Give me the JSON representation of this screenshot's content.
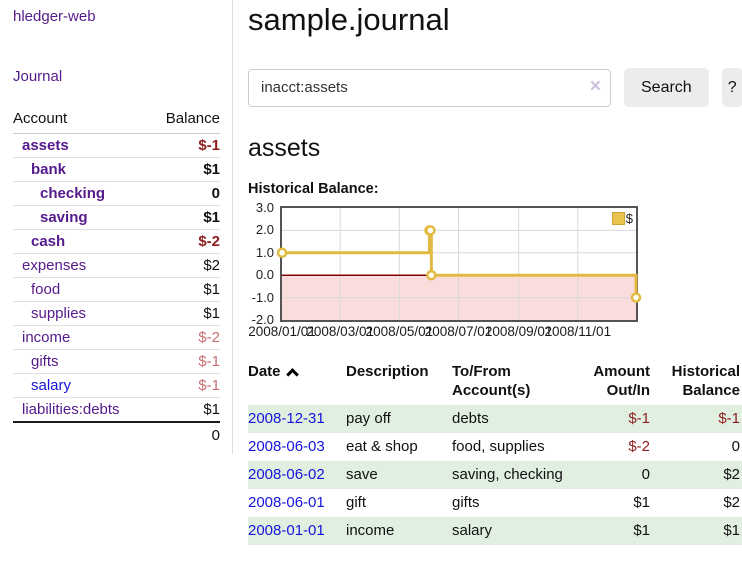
{
  "app": {
    "brand": "hledger-web",
    "nav_journal": "Journal"
  },
  "sidebar": {
    "headers": {
      "account": "Account",
      "balance": "Balance"
    },
    "accounts": [
      {
        "name": "assets",
        "balance": "$-1",
        "depth": 1,
        "bold": true,
        "neg": "strong"
      },
      {
        "name": "bank",
        "balance": "$1",
        "depth": 2,
        "bold": true,
        "neg": "none"
      },
      {
        "name": "checking",
        "balance": "0",
        "depth": 3,
        "bold": true,
        "neg": "none"
      },
      {
        "name": "saving",
        "balance": "$1",
        "depth": 3,
        "bold": true,
        "neg": "none"
      },
      {
        "name": "cash",
        "balance": "$-2",
        "depth": 2,
        "bold": true,
        "neg": "strong"
      },
      {
        "name": "expenses",
        "balance": "$2",
        "depth": 1,
        "bold": false,
        "neg": "none"
      },
      {
        "name": "food",
        "balance": "$1",
        "depth": 2,
        "bold": false,
        "neg": "none"
      },
      {
        "name": "supplies",
        "balance": "$1",
        "depth": 2,
        "bold": false,
        "neg": "none"
      },
      {
        "name": "income",
        "balance": "$-2",
        "depth": 1,
        "bold": false,
        "neg": "soft"
      },
      {
        "name": "gifts",
        "balance": "$-1",
        "depth": 2,
        "bold": false,
        "neg": "soft"
      },
      {
        "name": "salary",
        "balance": "$-1",
        "depth": 2,
        "bold": false,
        "neg": "soft",
        "blue": true
      },
      {
        "name": "liabilities:debts",
        "balance": "$1",
        "depth": 1,
        "bold": false,
        "neg": "none"
      }
    ],
    "total": "0"
  },
  "header": {
    "title": "sample.journal"
  },
  "search": {
    "value": "inacct:assets",
    "clear_icon": "×",
    "button_label": "Search",
    "help_label": "?"
  },
  "account_page": {
    "title": "assets",
    "chart_heading": "Historical Balance:"
  },
  "chart_data": {
    "type": "line",
    "style": "step-after",
    "title": "Historical Balance",
    "xdomain": [
      "2008-01-01",
      "2008-12-31"
    ],
    "ylim": [
      -2,
      3
    ],
    "yticks": [
      {
        "label": "3.0",
        "value": 3
      },
      {
        "label": "2.0",
        "value": 2
      },
      {
        "label": "1.0",
        "value": 1
      },
      {
        "label": "0.0",
        "value": 0
      },
      {
        "label": "-1.0",
        "value": -1
      },
      {
        "label": "-2.0",
        "value": -2
      }
    ],
    "xticks": [
      {
        "label": "2008/01/01",
        "date": "2008-01-01"
      },
      {
        "label": "2008/03/01",
        "date": "2008-03-01"
      },
      {
        "label": "2008/05/01",
        "date": "2008-05-01"
      },
      {
        "label": "2008/07/01",
        "date": "2008-07-01"
      },
      {
        "label": "2008/09/01",
        "date": "2008-09-01"
      },
      {
        "label": "2008/11/01",
        "date": "2008-11-01"
      }
    ],
    "series": [
      {
        "name": "$",
        "points": [
          {
            "date": "2008-01-01",
            "value": 1
          },
          {
            "date": "2008-06-01",
            "value": 2
          },
          {
            "date": "2008-06-02",
            "value": 2
          },
          {
            "date": "2008-06-03",
            "value": 0
          },
          {
            "date": "2008-12-31",
            "value": -1
          }
        ]
      }
    ],
    "legend": {
      "label": "$",
      "position": "top-right"
    },
    "grid": true,
    "colors": {
      "line": "#e3ba41",
      "marker_fill": "#ffffff",
      "negative_fill": "#fbdcdc",
      "zero_line": "#7e0000",
      "grid": "#d9d9d9",
      "border": "#545454",
      "swatch": "#e8c44c"
    }
  },
  "register": {
    "columns": [
      "Date",
      "Description",
      "To/From Account(s)",
      "Amount Out/In",
      "Historical Balance"
    ],
    "sort": {
      "column": "Date",
      "direction": "ascending"
    },
    "rows": [
      {
        "date": "2008-12-31",
        "description": "pay off",
        "accounts": "debts",
        "amount": "$-1",
        "balance": "$-1",
        "amount_neg": true,
        "balance_neg": true
      },
      {
        "date": "2008-06-03",
        "description": "eat & shop",
        "accounts": "food, supplies",
        "amount": "$-2",
        "balance": "0",
        "amount_neg": true,
        "balance_neg": false
      },
      {
        "date": "2008-06-02",
        "description": "save",
        "accounts": "saving, checking",
        "amount": "0",
        "balance": "$2",
        "amount_neg": false,
        "balance_neg": false
      },
      {
        "date": "2008-06-01",
        "description": "gift",
        "accounts": "gifts",
        "amount": "$1",
        "balance": "$2",
        "amount_neg": false,
        "balance_neg": false
      },
      {
        "date": "2008-01-01",
        "description": "income",
        "accounts": "salary",
        "amount": "$1",
        "balance": "$1",
        "amount_neg": false,
        "balance_neg": false
      }
    ]
  },
  "colors": {
    "link_purple": "#551a8b",
    "link_blue": "#1515dd",
    "negative_strong": "#8f1d1d",
    "negative_soft": "#c57070",
    "row_green": "#e1efe1",
    "button_bg": "#ececec",
    "clear_icon": "#cbc0dc",
    "divider": "#dddddd"
  }
}
